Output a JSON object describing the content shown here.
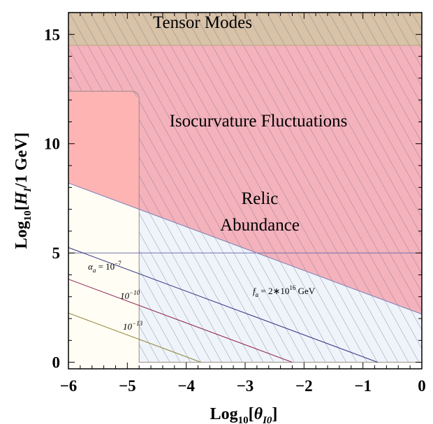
{
  "chart_data": {
    "type": "area",
    "xlabel": "Log10[θI0]",
    "ylabel": "Log10[HI/1 GeV]",
    "xlim": [
      -6,
      0
    ],
    "ylim": [
      -0.3,
      16
    ],
    "x_ticks": [
      "−6",
      "−5",
      "−4",
      "−3",
      "−2",
      "−1",
      "0"
    ],
    "y_ticks": [
      "0",
      "5",
      "10",
      "15"
    ],
    "regions": [
      {
        "name": "Tensor Modes",
        "label": "Tensor Modes",
        "color": "#d8c2a8",
        "y_min": 14.5,
        "y_max": 16
      },
      {
        "name": "Isocurvature Fluctuations",
        "label": "Isocurvature Fluctuations",
        "color": "#f4b2bc"
      },
      {
        "name": "Relic Abundance",
        "label_line1": "Relic",
        "label_line2": "Abundance",
        "color": "#f4b2bc"
      }
    ],
    "lines": [
      {
        "name": "f_a = 2*10^16 GeV",
        "label_base": "f",
        "label_sub": "a",
        "label_rest": " = 2∗10",
        "label_sup": "16",
        "label_unit": " GeV",
        "color": "#8080b8",
        "x": [
          -6,
          0
        ],
        "y": [
          8.2,
          2.2
        ]
      },
      {
        "name": "alpha_a = 10^-7",
        "label_base": "α",
        "label_sub": "a",
        "label_rest": " = 10",
        "label_sup": "−7",
        "color": "#303080",
        "x": [
          -6,
          -0.75
        ],
        "y": [
          5.25,
          0
        ]
      },
      {
        "name": "10^-10",
        "label_base": "10",
        "label_sup": "−10",
        "color": "#902050",
        "x": [
          -6,
          -2.2
        ],
        "y": [
          3.8,
          0
        ]
      },
      {
        "name": "10^-13",
        "label_base": "10",
        "label_sup": "−13",
        "color": "#908030",
        "x": [
          -6,
          -3.75
        ],
        "y": [
          2.25,
          0
        ]
      }
    ],
    "boundaries": {
      "isocurvature_x": -4.8,
      "isocurvature_top": 12.4,
      "horizontal_y": 5.0,
      "tensor_y": 14.5
    },
    "grid": false
  }
}
